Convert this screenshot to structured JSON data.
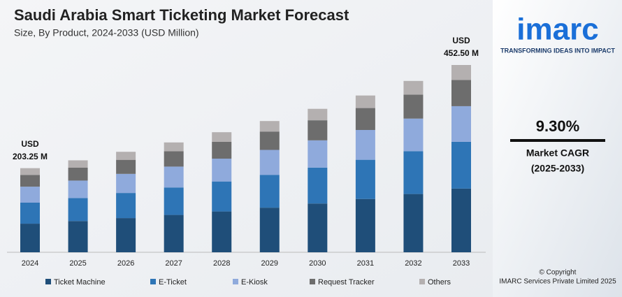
{
  "chart_data": {
    "type": "stacked_bar",
    "title": "Saudi Arabia Smart Ticketing Market Forecast",
    "subtitle": "Size, By Product, 2024-2033 (USD Million)",
    "categories": [
      "2024",
      "2025",
      "2026",
      "2027",
      "2028",
      "2029",
      "2030",
      "2031",
      "2032",
      "2033"
    ],
    "series": [
      {
        "name": "Ticket Machine",
        "color": "#1f4e79",
        "values": [
          69.1,
          75.5,
          82.6,
          90.2,
          98.6,
          107.8,
          117.8,
          128.8,
          140.8,
          153.9
        ]
      },
      {
        "name": "E-Ticket",
        "color": "#2e75b6",
        "values": [
          50.8,
          55.5,
          60.7,
          66.4,
          72.5,
          79.3,
          86.7,
          94.7,
          103.5,
          113.1
        ]
      },
      {
        "name": "E-Kiosk",
        "color": "#8faadc",
        "values": [
          38.6,
          42.2,
          46.1,
          50.4,
          55.1,
          60.2,
          65.9,
          72.0,
          78.7,
          86.0
        ]
      },
      {
        "name": "Request Tracker",
        "color": "#6d6d6d",
        "values": [
          28.5,
          31.1,
          34.0,
          37.2,
          40.6,
          44.4,
          48.5,
          53.0,
          58.0,
          63.4
        ]
      },
      {
        "name": "Others",
        "color": "#b4b0b0",
        "values": [
          16.25,
          17.85,
          19.4,
          21.2,
          23.3,
          25.4,
          27.7,
          30.3,
          33.0,
          36.1
        ]
      }
    ],
    "annotations": [
      [
        "USD",
        "203.25 M"
      ],
      [
        "USD",
        "452.50 M"
      ]
    ]
  },
  "sidebar": {
    "logo": "imarc",
    "tagline": "TRANSFORMING IDEAS INTO IMPACT",
    "cagr": "9.30%",
    "cagr_label": "Market CAGR",
    "cagr_period": "(2025-2033)",
    "copyright": "© Copyright",
    "company": "IMARC Services Private Limited 2025"
  }
}
